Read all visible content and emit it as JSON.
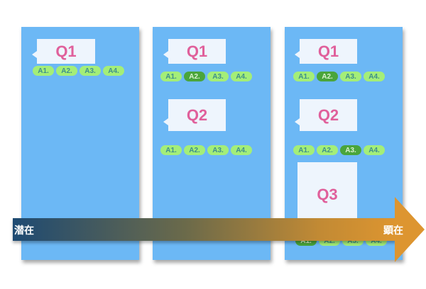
{
  "panels": [
    {
      "questions": [
        {
          "label": "Q1",
          "answers": [
            "A1.",
            "A2.",
            "A3.",
            "A4."
          ],
          "selected": null
        }
      ]
    },
    {
      "questions": [
        {
          "label": "Q1",
          "answers": [
            "A1.",
            "A2.",
            "A3.",
            "A4."
          ],
          "selected": "A2."
        },
        {
          "label": "Q2",
          "answers": [
            "A1.",
            "A2.",
            "A3.",
            "A4."
          ],
          "selected": null
        }
      ]
    },
    {
      "questions": [
        {
          "label": "Q1",
          "answers": [
            "A1.",
            "A2.",
            "A3.",
            "A4."
          ],
          "selected": "A2."
        },
        {
          "label": "Q2",
          "answers": [
            "A1.",
            "A2.",
            "A3.",
            "A4."
          ],
          "selected": "A3."
        },
        {
          "label": "Q3",
          "answers": [
            "A1.",
            "A2.",
            "A3.",
            "A4."
          ],
          "selected": "A1."
        }
      ]
    }
  ],
  "arrow": {
    "start_label": "潜在",
    "end_label": "顕在",
    "start_color": "#1e4a72",
    "end_color": "#dd9530"
  },
  "colors": {
    "panel": "#6cb8f5",
    "question_text": "#e0609b",
    "answer": "#a4ee78",
    "answer_selected": "#4aa53b"
  }
}
